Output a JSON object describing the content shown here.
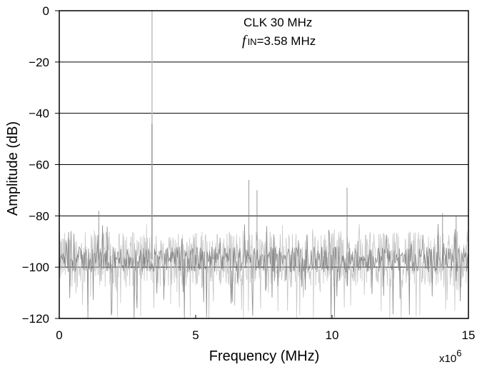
{
  "chart_data": {
    "type": "line",
    "annotations": {
      "line1": "CLK 30 MHz",
      "line2_symbol": "f",
      "line2_subscript": "IN",
      "line2_value": "=3.58 MHz"
    },
    "xlabel": "Frequency (MHz)",
    "ylabel": "Amplitude (dB)",
    "x_multiplier_base": "x10",
    "x_multiplier_exp": "6",
    "xlim": [
      0,
      15
    ],
    "ylim": [
      -120,
      0
    ],
    "x_ticks": [
      {
        "value": 0,
        "label": "0"
      },
      {
        "value": 5,
        "label": "5"
      },
      {
        "value": 10,
        "label": "10"
      },
      {
        "value": 15,
        "label": "15"
      }
    ],
    "y_ticks": [
      {
        "value": 0,
        "label": "0"
      },
      {
        "value": -20,
        "label": "−20"
      },
      {
        "value": -40,
        "label": "−40"
      },
      {
        "value": -60,
        "label": "−60"
      },
      {
        "value": -80,
        "label": "−80"
      },
      {
        "value": -100,
        "label": "−100"
      },
      {
        "value": -120,
        "label": "−120"
      }
    ],
    "grid": "horizontal",
    "legend": "none",
    "noise_floor_db": -97,
    "noise_min_db": -120,
    "noise_max_db": -83,
    "series": [
      {
        "values_description": "spectral peaks (MHz, dB)",
        "peaks": [
          {
            "x": 3.4,
            "y": 0
          },
          {
            "x": 3.4,
            "y": -44
          },
          {
            "x": 6.95,
            "y": -66
          },
          {
            "x": 7.25,
            "y": -70
          },
          {
            "x": 10.55,
            "y": -69
          },
          {
            "x": 1.45,
            "y": -78
          },
          {
            "x": 14.05,
            "y": -79
          },
          {
            "x": 14.55,
            "y": -80
          }
        ]
      }
    ],
    "colors": {
      "trace": "#777777",
      "trace_light": "#bdbdbd",
      "grid": "#000000",
      "axis": "#000000"
    }
  }
}
